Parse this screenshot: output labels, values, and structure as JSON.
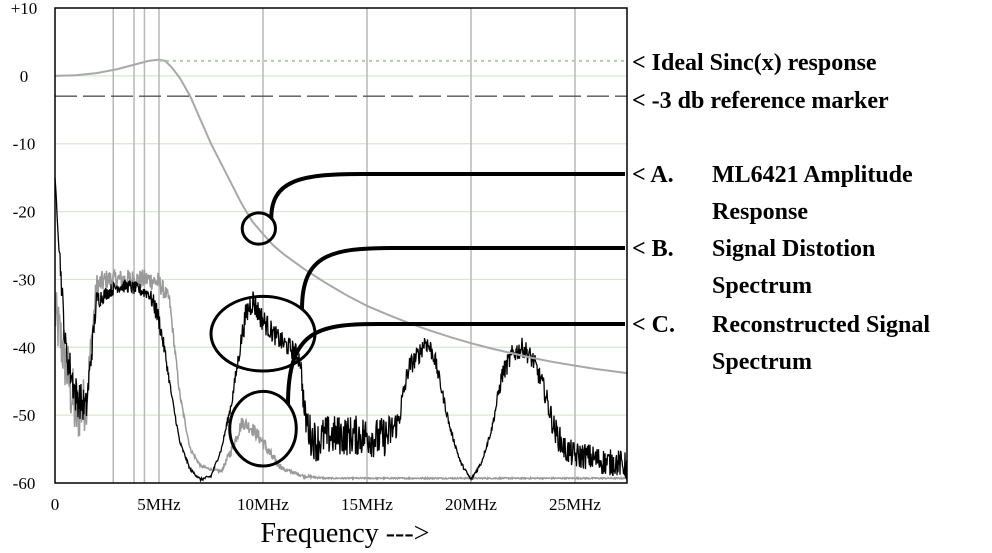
{
  "chart_data": {
    "type": "line",
    "xlabel": "Frequency --->",
    "ylabel": "",
    "xlim": [
      0,
      27.5
    ],
    "ylim": [
      -60,
      10
    ],
    "x_tick_labels": [
      {
        "x": 0,
        "label": "0"
      },
      {
        "x": 5,
        "label": "5MHz"
      },
      {
        "x": 10,
        "label": "10MHz"
      },
      {
        "x": 15,
        "label": "15MHz"
      },
      {
        "x": 20,
        "label": "20MHz"
      },
      {
        "x": 25,
        "label": "25MHz"
      }
    ],
    "y_tick_labels": [
      {
        "y": 10,
        "label": "+10"
      },
      {
        "y": 0,
        "label": "0"
      },
      {
        "y": -10,
        "label": "-10"
      },
      {
        "y": -20,
        "label": "-20"
      },
      {
        "y": -30,
        "label": "-30"
      },
      {
        "y": -40,
        "label": "-40"
      },
      {
        "y": -50,
        "label": "-50"
      },
      {
        "y": -60,
        "label": "-60"
      }
    ],
    "extra_vertical_gridlines_x": [
      2.8,
      3.8,
      4.3
    ],
    "grid": true,
    "colors": {
      "axis": "#000000",
      "grid": "#b8b8b8",
      "grid_minor": "#d8e8d0",
      "amplitude_response": "#a8a8a8",
      "ideal_sinc": "#b8c8b0",
      "reference_marker": "#555555",
      "distortion_spectrum": "#000000",
      "reconstructed_spectrum": "#9a9a9a",
      "annotation": "#000000"
    },
    "series": [
      {
        "key": "amplitude_response",
        "style": "line",
        "x": [
          0,
          1,
          2,
          3,
          3.5,
          4,
          4.5,
          5,
          5.3,
          5.6,
          6,
          6.5,
          7,
          7.5,
          8,
          8.5,
          9,
          9.5,
          10,
          10.5,
          11,
          12,
          13,
          14,
          15,
          16,
          17,
          18,
          19,
          20,
          21,
          22,
          23,
          24,
          25,
          26,
          27.5
        ],
        "y": [
          0,
          0.1,
          0.4,
          1.0,
          1.4,
          1.8,
          2.2,
          2.4,
          2.2,
          1.3,
          -0.3,
          -3,
          -6.5,
          -10,
          -13,
          -16,
          -19,
          -21.5,
          -23.3,
          -25,
          -26.3,
          -28.5,
          -30.5,
          -32.3,
          -33.9,
          -35.2,
          -36.4,
          -37.5,
          -38.5,
          -39.4,
          -40.2,
          -40.9,
          -41.6,
          -42.2,
          -42.7,
          -43.2,
          -43.8
        ]
      },
      {
        "key": "ideal_sinc",
        "style": "dotted",
        "x": [
          5,
          27.5
        ],
        "y": [
          2.2,
          2.2
        ]
      },
      {
        "key": "reference_marker",
        "style": "dashed",
        "x": [
          0,
          27.5
        ],
        "y": [
          -3,
          -3
        ]
      },
      {
        "key": "distortion_spectrum",
        "style": "noisy",
        "x": [
          0,
          0.2,
          0.5,
          1,
          1.5,
          2,
          2.5,
          3,
          3.5,
          4,
          4.5,
          4.8,
          5,
          5.3,
          5.6,
          6,
          6.5,
          7,
          7.5,
          8,
          8.5,
          9,
          9.2,
          9.5,
          9.8,
          10,
          10.5,
          11,
          11.5,
          11.8,
          12,
          12.3,
          12.6,
          13,
          14,
          15,
          15.5,
          16,
          16.5,
          17,
          17.5,
          17.8,
          18.2,
          18.5,
          19,
          19.5,
          20,
          20.5,
          21,
          21.5,
          22,
          22.5,
          23,
          23.5,
          24,
          24.5,
          25,
          25.5,
          26,
          26.5,
          27,
          27.5
        ],
        "y": [
          -15,
          -25,
          -40,
          -47,
          -49,
          -33,
          -32,
          -31,
          -31,
          -31.5,
          -32,
          -34,
          -36,
          -41,
          -47,
          -54,
          -58,
          -59.5,
          -59,
          -55,
          -48,
          -38,
          -35,
          -33,
          -35,
          -36,
          -38,
          -39.5,
          -40.5,
          -42,
          -50,
          -53,
          -54,
          -53,
          -53,
          -53,
          -53.5,
          -53,
          -51,
          -43,
          -41,
          -39,
          -41,
          -45,
          -52,
          -57,
          -59.5,
          -57,
          -52,
          -44,
          -41,
          -40,
          -42,
          -46,
          -52,
          -55,
          -56,
          -56,
          -56.5,
          -57,
          -57,
          -57.5
        ],
        "noise": [
          0,
          1.5,
          2.5,
          3,
          2.5,
          1.5,
          1,
          1,
          1,
          1,
          1,
          1.5,
          1.5,
          1,
          0.5,
          0.3,
          0.2,
          0.2,
          0.2,
          0.3,
          0.8,
          1.5,
          2,
          2,
          1.8,
          1.8,
          1.5,
          1.5,
          1.5,
          1.5,
          2.5,
          3,
          3,
          3,
          3,
          3,
          3,
          3,
          2,
          1.5,
          1.5,
          1.5,
          1.5,
          1,
          0.5,
          0.3,
          0.2,
          0.3,
          0.5,
          1.5,
          1.5,
          1.5,
          1.5,
          1.5,
          2,
          2,
          2,
          2,
          2,
          2,
          2,
          2
        ]
      },
      {
        "key": "reconstructed_spectrum",
        "style": "noisy",
        "x": [
          0,
          0.5,
          1,
          1.5,
          2,
          2.5,
          3,
          3.5,
          4,
          4.5,
          5,
          5.5,
          6,
          6.5,
          7,
          7.5,
          8,
          8.5,
          9,
          9.5,
          10,
          10.5,
          11,
          12,
          13,
          14,
          16,
          18,
          20,
          22,
          24,
          26,
          27.5
        ],
        "y": [
          -35,
          -42,
          -50,
          -48,
          -31,
          -30,
          -30,
          -30,
          -30,
          -30,
          -30.5,
          -33,
          -47,
          -55,
          -57.5,
          -58,
          -58.3,
          -55,
          -51,
          -52,
          -54,
          -56.5,
          -58,
          -59,
          -59.3,
          -59.3,
          -59.3,
          -59.3,
          -59.3,
          -59.3,
          -59.3,
          -59.3,
          -59.3
        ],
        "noise": [
          4,
          5,
          5,
          4,
          2,
          1.5,
          1.5,
          1.5,
          1.5,
          1.5,
          1.5,
          1,
          0.5,
          0.3,
          0.2,
          0.2,
          0.2,
          0.8,
          1,
          1,
          1,
          0.8,
          0.3,
          0.2,
          0.1,
          0.1,
          0.1,
          0.1,
          0.1,
          0.1,
          0.1,
          0.1,
          0.1
        ]
      }
    ],
    "annotations": [
      {
        "key": "ideal",
        "text": "< Ideal Sinc(x) response"
      },
      {
        "key": "ref",
        "text": "< -3 db reference marker"
      },
      {
        "key": "a",
        "marker": "< A.",
        "lines": [
          "ML6421 Amplitude",
          "Response"
        ],
        "circle_center": [
          9.8,
          -22.5
        ],
        "circle_radius": [
          0.8,
          2.3
        ]
      },
      {
        "key": "b",
        "marker": "< B.",
        "lines": [
          "Signal Distotion",
          "Spectrum"
        ],
        "circle_center": [
          10,
          -38
        ],
        "circle_radius": [
          2.5,
          5.5
        ]
      },
      {
        "key": "c",
        "marker": "< C.",
        "lines": [
          "Reconstructed Signal",
          "Spectrum"
        ],
        "circle_center": [
          10,
          -52
        ],
        "circle_radius": [
          1.6,
          5.5
        ]
      }
    ]
  }
}
